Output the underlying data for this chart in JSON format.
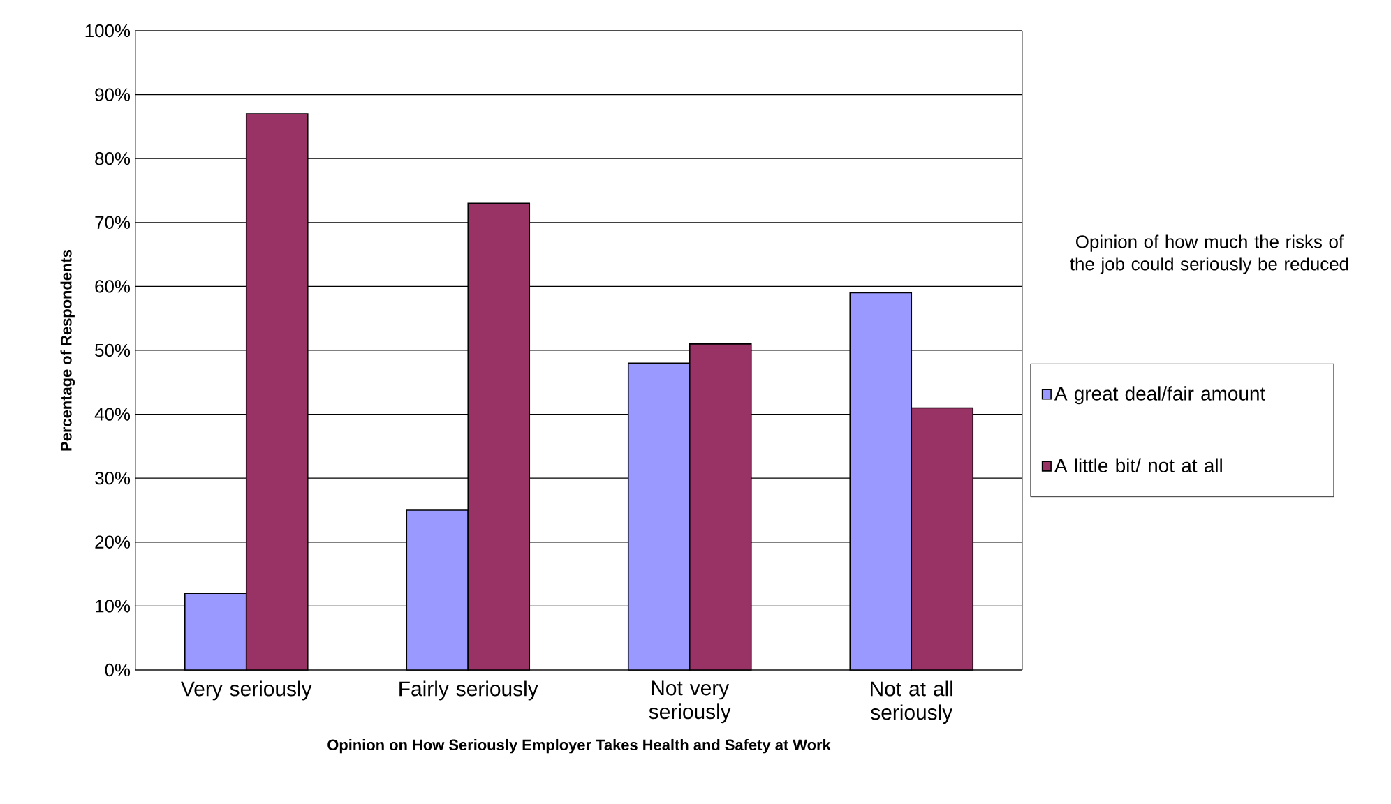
{
  "chart_data": {
    "type": "bar",
    "xlabel": "Opinion on How Seriously Employer Takes Health and Safety at Work",
    "ylabel": "Percentage of Respondents",
    "legend_title": "Opinion of how much the risks of the job could seriously be reduced",
    "categories": [
      "Very seriously",
      "Fairly seriously",
      "Not very seriously",
      "Not at all seriously"
    ],
    "series": [
      {
        "name": "A great deal/fair amount",
        "color": "#9999ff",
        "values": [
          12,
          25,
          48,
          59
        ]
      },
      {
        "name": "A little bit/ not at all",
        "color": "#993366",
        "values": [
          87,
          73,
          51,
          41
        ]
      }
    ],
    "ylim": [
      0,
      100
    ],
    "yticks": [
      {
        "value": 0,
        "label": "0%"
      },
      {
        "value": 10,
        "label": "10%"
      },
      {
        "value": 20,
        "label": "20%"
      },
      {
        "value": 30,
        "label": "30%"
      },
      {
        "value": 40,
        "label": "40%"
      },
      {
        "value": 50,
        "label": "50%"
      },
      {
        "value": 60,
        "label": "60%"
      },
      {
        "value": 70,
        "label": "70%"
      },
      {
        "value": 80,
        "label": "80%"
      },
      {
        "value": 90,
        "label": "90%"
      },
      {
        "value": 100,
        "label": "100%"
      }
    ],
    "grid": "y",
    "legend": "right"
  }
}
